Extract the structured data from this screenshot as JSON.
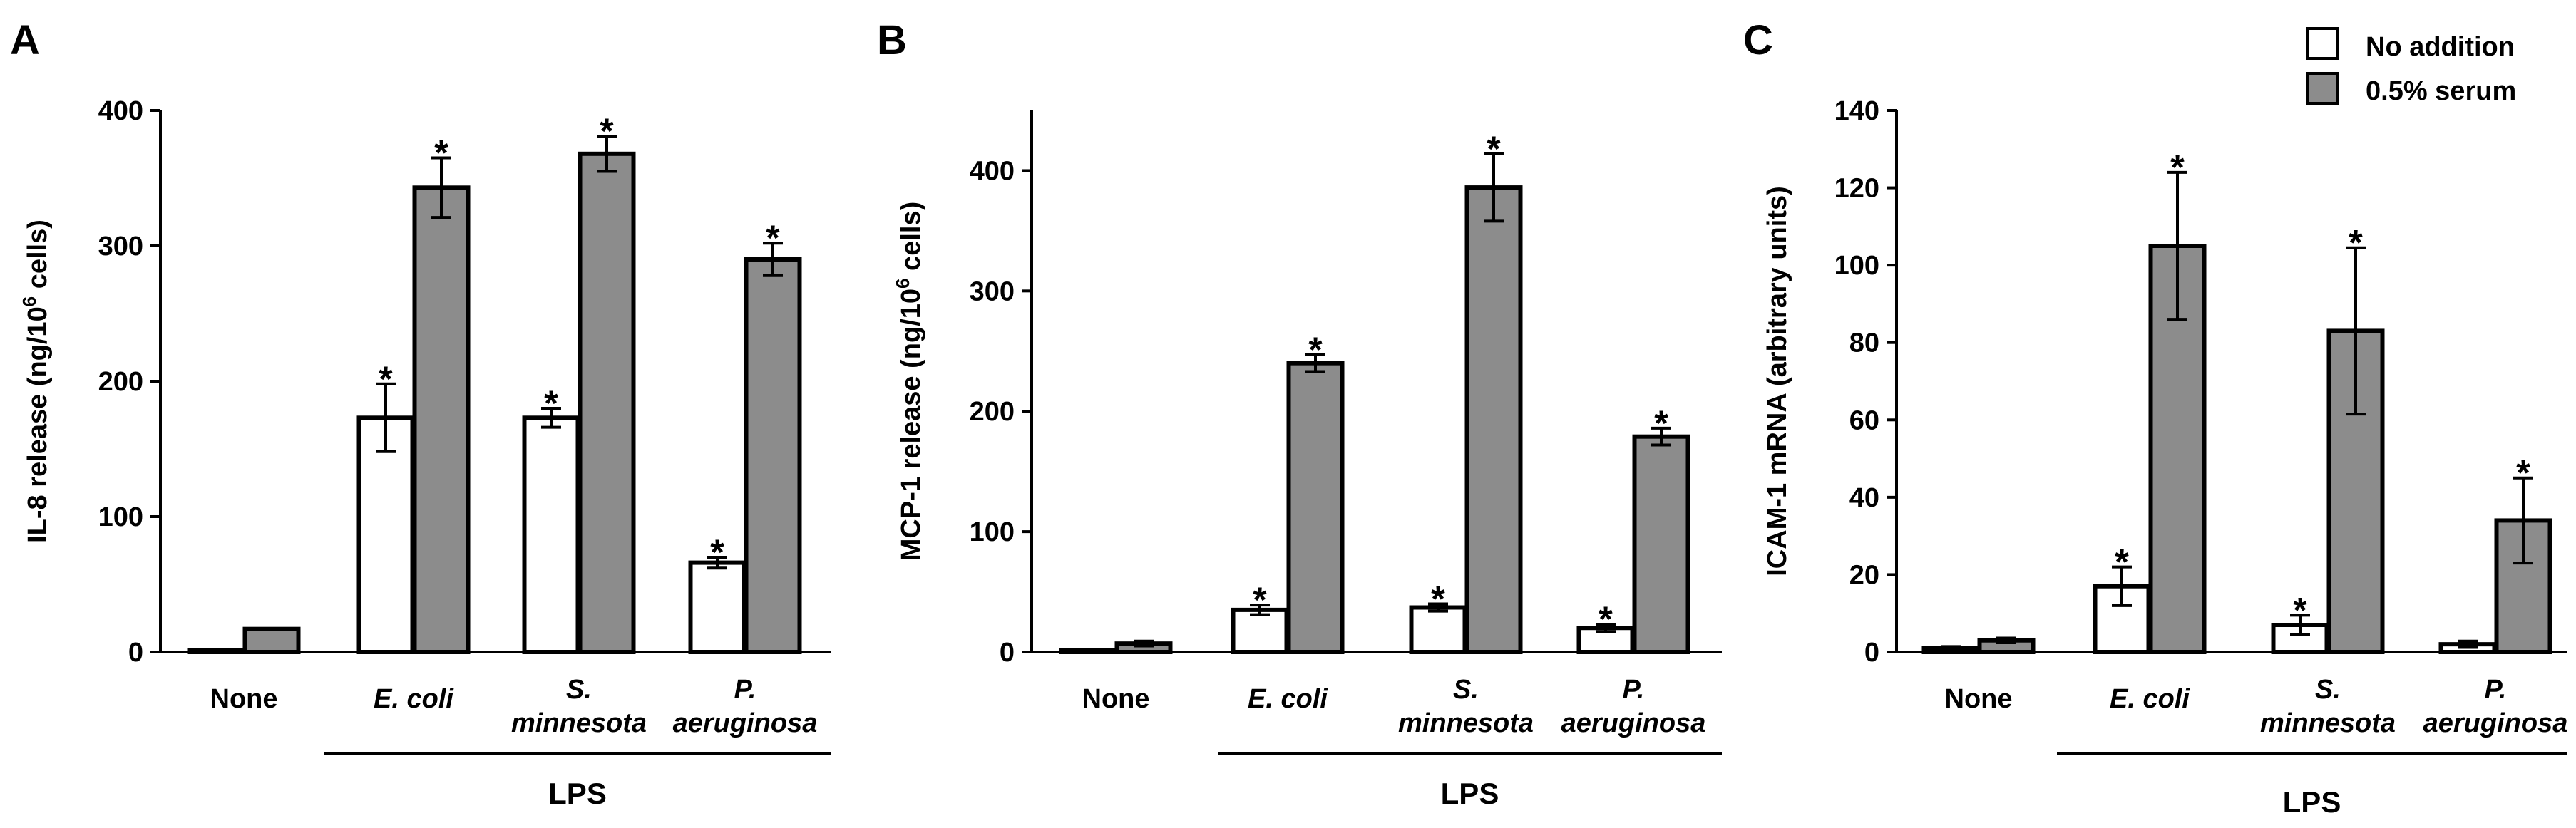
{
  "legend": {
    "items": [
      {
        "label": "No addition",
        "color": "#ffffff"
      },
      {
        "label": "0.5% serum",
        "color": "#8c8c8c"
      }
    ]
  },
  "colors": {
    "no_addition": "#ffffff",
    "serum": "#8c8c8c",
    "stroke": "#000000"
  },
  "chart_data": [
    {
      "panel": "A",
      "type": "bar",
      "ylabel_parts": [
        "IL-8 release (ng/10",
        "6",
        " cells)"
      ],
      "ylim": [
        0,
        400
      ],
      "yticks": [
        0,
        100,
        200,
        300,
        400
      ],
      "categories": [
        {
          "lines": [
            "None"
          ],
          "italic": false
        },
        {
          "lines": [
            "E. coli"
          ],
          "italic": true
        },
        {
          "lines": [
            "S.",
            "minnesota"
          ],
          "italic": true
        },
        {
          "lines": [
            "P.",
            "aeruginosa"
          ],
          "italic": true
        }
      ],
      "group_label": "LPS",
      "series": [
        {
          "key": "no_addition",
          "values": [
            1,
            173,
            173,
            66
          ],
          "errors": [
            0,
            25,
            7,
            4
          ],
          "stars": [
            false,
            true,
            true,
            true
          ]
        },
        {
          "key": "serum",
          "values": [
            17,
            343,
            368,
            290
          ],
          "errors": [
            0,
            22,
            13,
            12
          ],
          "stars": [
            false,
            true,
            true,
            true
          ]
        }
      ]
    },
    {
      "panel": "B",
      "type": "bar",
      "ylabel_parts": [
        "MCP-1 release (ng/10",
        "6",
        " cells)"
      ],
      "ylim": [
        0,
        450
      ],
      "yticks": [
        0,
        100,
        200,
        300,
        400
      ],
      "categories": [
        {
          "lines": [
            "None"
          ],
          "italic": false
        },
        {
          "lines": [
            "E. coli"
          ],
          "italic": true
        },
        {
          "lines": [
            "S.",
            "minnesota"
          ],
          "italic": true
        },
        {
          "lines": [
            "P.",
            "aeruginosa"
          ],
          "italic": true
        }
      ],
      "group_label": "LPS",
      "series": [
        {
          "key": "no_addition",
          "values": [
            0,
            35,
            37,
            20
          ],
          "errors": [
            0,
            4,
            3,
            3
          ],
          "stars": [
            false,
            true,
            true,
            true
          ]
        },
        {
          "key": "serum",
          "values": [
            7,
            240,
            386,
            179
          ],
          "errors": [
            2,
            7,
            28,
            7
          ],
          "stars": [
            false,
            true,
            true,
            true
          ]
        }
      ]
    },
    {
      "panel": "C",
      "type": "bar",
      "ylabel_parts": [
        "ICAM-1 mRNA (arbitrary units)"
      ],
      "ylim": [
        0,
        140
      ],
      "yticks": [
        0,
        20,
        40,
        60,
        80,
        100,
        120,
        140
      ],
      "categories": [
        {
          "lines": [
            "None"
          ],
          "italic": false
        },
        {
          "lines": [
            "E. coli"
          ],
          "italic": true
        },
        {
          "lines": [
            "S.",
            "minnesota"
          ],
          "italic": true
        },
        {
          "lines": [
            "P.",
            "aeruginosa"
          ],
          "italic": true
        }
      ],
      "group_label": "LPS",
      "series": [
        {
          "key": "no_addition",
          "values": [
            1,
            17,
            7,
            2
          ],
          "errors": [
            0.4,
            5,
            2.5,
            0.8
          ],
          "stars": [
            false,
            true,
            true,
            false
          ]
        },
        {
          "key": "serum",
          "values": [
            3,
            105,
            83,
            34
          ],
          "errors": [
            0.6,
            19,
            21.5,
            11
          ],
          "stars": [
            false,
            true,
            true,
            true
          ]
        }
      ]
    }
  ]
}
